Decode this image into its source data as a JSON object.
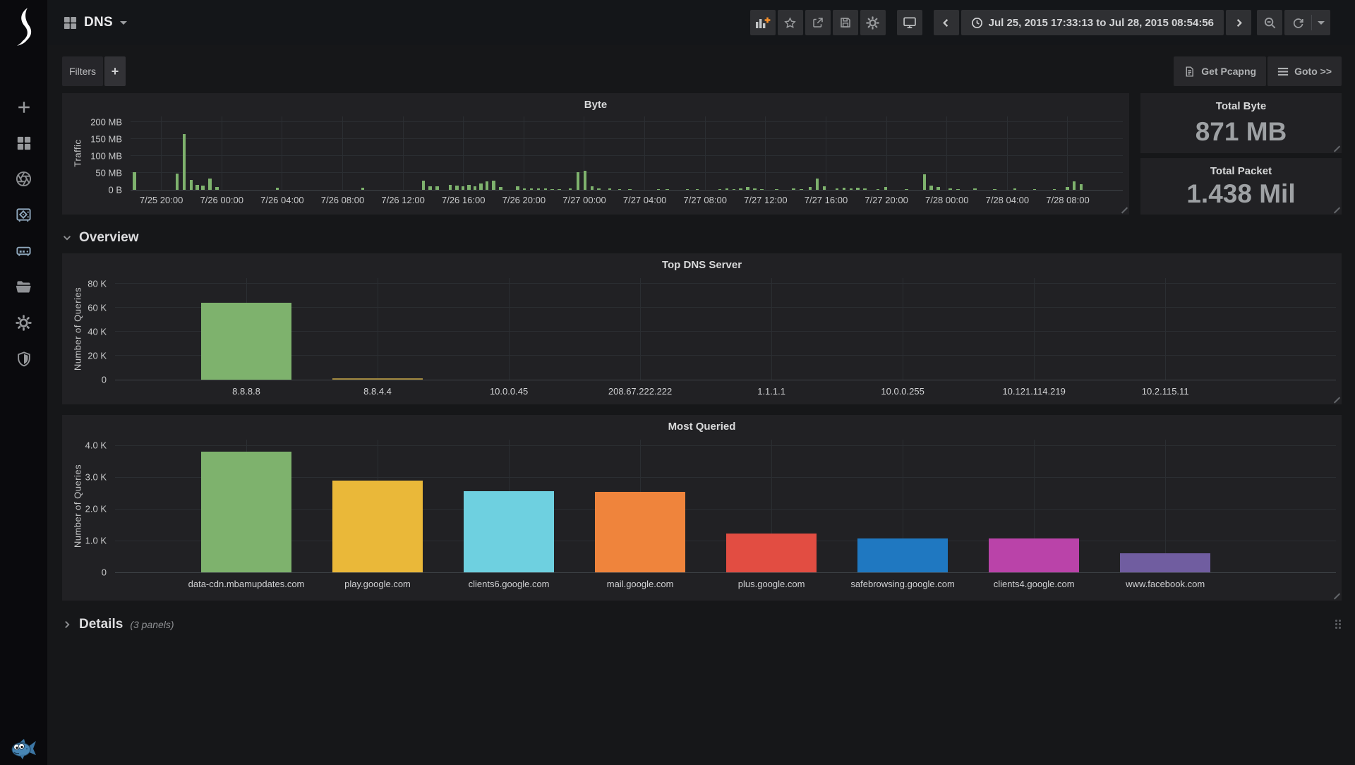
{
  "navbar": {
    "title": "DNS",
    "time_range": "Jul 25, 2015 17:33:13 to Jul 28, 2015 08:54:56"
  },
  "filters": {
    "label": "Filters",
    "add_label": "+"
  },
  "toolbar": {
    "get_pcapng": "Get Pcapng",
    "goto": "Goto >>"
  },
  "stats": [
    {
      "title": "Total Byte",
      "value": "871 MB"
    },
    {
      "title": "Total Packet",
      "value": "1.438 Mil"
    }
  ],
  "sections": {
    "overview_label": "Overview",
    "details_label": "Details",
    "details_note": "(3 panels)"
  },
  "colors": {
    "accent_orange": "#f68f2a",
    "green": "#7eb26d"
  },
  "sidebar_icons": [
    "plus",
    "dashboard-grid",
    "aperture",
    "vault",
    "server",
    "folder-open",
    "gear",
    "shield"
  ],
  "navbar_icons": [
    "dashboard-grid",
    "add-panel",
    "star",
    "share",
    "save",
    "settings-gear",
    "tv-monitor",
    "chevron-left",
    "clock",
    "chevron-right",
    "zoom-out",
    "refresh",
    "caret-down"
  ],
  "chart_data": [
    {
      "type": "bar",
      "title": "Byte",
      "ylabel": "Traffic",
      "unit": "MB",
      "ylim": [
        0,
        216
      ],
      "yticks": [
        {
          "v": 200,
          "label": "200 MB"
        },
        {
          "v": 150,
          "label": "150 MB"
        },
        {
          "v": 100,
          "label": "100 MB"
        },
        {
          "v": 50,
          "label": "50 MB"
        },
        {
          "v": 0,
          "label": "0 B"
        }
      ],
      "xticklabels": [
        "7/25 20:00",
        "7/26 00:00",
        "7/26 04:00",
        "7/26 08:00",
        "7/26 12:00",
        "7/26 16:00",
        "7/26 20:00",
        "7/27 00:00",
        "7/27 04:00",
        "7/27 08:00",
        "7/27 12:00",
        "7/27 16:00",
        "7/27 20:00",
        "7/28 00:00",
        "7/28 04:00",
        "7/28 08:00"
      ],
      "bar_color": "#7eb26d",
      "bars": [
        [
          0.004,
          52
        ],
        [
          0.047,
          47
        ],
        [
          0.054,
          165
        ],
        [
          0.061,
          30
        ],
        [
          0.067,
          15
        ],
        [
          0.073,
          12
        ],
        [
          0.08,
          33
        ],
        [
          0.087,
          8
        ],
        [
          0.148,
          7
        ],
        [
          0.234,
          6
        ],
        [
          0.295,
          28
        ],
        [
          0.302,
          10
        ],
        [
          0.309,
          10
        ],
        [
          0.322,
          15
        ],
        [
          0.329,
          12
        ],
        [
          0.335,
          10
        ],
        [
          0.341,
          14
        ],
        [
          0.347,
          10
        ],
        [
          0.353,
          18
        ],
        [
          0.359,
          25
        ],
        [
          0.366,
          28
        ],
        [
          0.373,
          8
        ],
        [
          0.39,
          10
        ],
        [
          0.397,
          5
        ],
        [
          0.404,
          4
        ],
        [
          0.411,
          4
        ],
        [
          0.418,
          4
        ],
        [
          0.425,
          3
        ],
        [
          0.432,
          3
        ],
        [
          0.443,
          4
        ],
        [
          0.451,
          52
        ],
        [
          0.458,
          57
        ],
        [
          0.465,
          10
        ],
        [
          0.472,
          4
        ],
        [
          0.483,
          5
        ],
        [
          0.493,
          3
        ],
        [
          0.503,
          3
        ],
        [
          0.532,
          3
        ],
        [
          0.541,
          2
        ],
        [
          0.561,
          3
        ],
        [
          0.571,
          2
        ],
        [
          0.594,
          3
        ],
        [
          0.601,
          4
        ],
        [
          0.608,
          3
        ],
        [
          0.615,
          5
        ],
        [
          0.622,
          8
        ],
        [
          0.629,
          4
        ],
        [
          0.636,
          3
        ],
        [
          0.651,
          3
        ],
        [
          0.668,
          4
        ],
        [
          0.676,
          3
        ],
        [
          0.685,
          8
        ],
        [
          0.692,
          33
        ],
        [
          0.699,
          10
        ],
        [
          0.712,
          4
        ],
        [
          0.719,
          6
        ],
        [
          0.726,
          5
        ],
        [
          0.733,
          6
        ],
        [
          0.74,
          4
        ],
        [
          0.753,
          3
        ],
        [
          0.761,
          8
        ],
        [
          0.782,
          3
        ],
        [
          0.8,
          45
        ],
        [
          0.807,
          12
        ],
        [
          0.814,
          8
        ],
        [
          0.826,
          4
        ],
        [
          0.834,
          3
        ],
        [
          0.851,
          4
        ],
        [
          0.871,
          3
        ],
        [
          0.891,
          4
        ],
        [
          0.911,
          3
        ],
        [
          0.931,
          3
        ],
        [
          0.944,
          8
        ],
        [
          0.951,
          25
        ],
        [
          0.958,
          17
        ]
      ]
    },
    {
      "type": "bar",
      "title": "Top DNS Server",
      "ylabel": "Number of Queries",
      "ylim": [
        0,
        84700
      ],
      "yticks": [
        {
          "v": 80000,
          "label": "80 K"
        },
        {
          "v": 60000,
          "label": "60 K"
        },
        {
          "v": 40000,
          "label": "40 K"
        },
        {
          "v": 20000,
          "label": "20 K"
        },
        {
          "v": 0,
          "label": "0"
        }
      ],
      "categories": [
        "8.8.8.8",
        "8.8.4.4",
        "10.0.0.45",
        "208.67.222.222",
        "1.1.1.1",
        "10.0.0.255",
        "10.121.114.219",
        "10.2.115.11"
      ],
      "values": [
        64000,
        1100,
        0,
        0,
        0,
        0,
        0,
        0
      ],
      "colors": [
        "#7eb26d",
        "#a1883f",
        "#6ed0e0",
        "#ef843c",
        "#e24d42",
        "#1f78c1",
        "#ba43a9",
        "#705da0"
      ]
    },
    {
      "type": "bar",
      "title": "Most Queried",
      "ylabel": "Number of Queries",
      "ylim": [
        0,
        4180
      ],
      "yticks": [
        {
          "v": 4000,
          "label": "4.0 K"
        },
        {
          "v": 3000,
          "label": "3.0 K"
        },
        {
          "v": 2000,
          "label": "2.0 K"
        },
        {
          "v": 1000,
          "label": "1.0 K"
        },
        {
          "v": 0,
          "label": "0"
        }
      ],
      "categories": [
        "data-cdn.mbamupdates.com",
        "play.google.com",
        "clients6.google.com",
        "mail.google.com",
        "plus.google.com",
        "safebrowsing.google.com",
        "clients4.google.com",
        "www.facebook.com"
      ],
      "values": [
        3800,
        2900,
        2550,
        2540,
        1230,
        1070,
        1060,
        590
      ],
      "colors": [
        "#7eb26d",
        "#eab839",
        "#6ed0e0",
        "#ef843c",
        "#e24d42",
        "#1f78c1",
        "#ba43a9",
        "#705da0"
      ]
    }
  ]
}
